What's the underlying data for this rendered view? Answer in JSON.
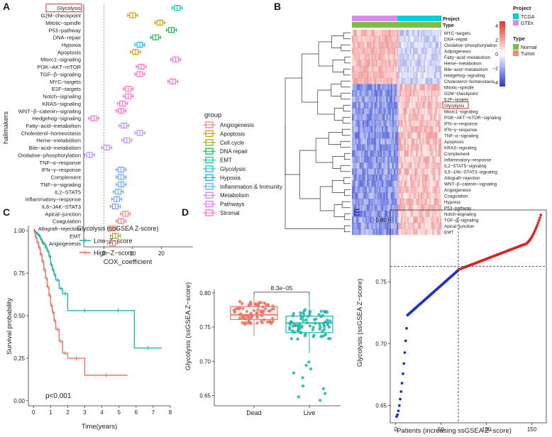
{
  "panel_letters": [
    "A",
    "B",
    "C",
    "D",
    "E"
  ],
  "chart_data": [
    {
      "panel": "A",
      "type": "scatter",
      "xlabel": "COX_coefficient",
      "ylabel": "hallmakers",
      "xlim": [
        -7,
        31
      ],
      "xticks": [
        "0",
        "10",
        "20"
      ],
      "xtick_values": [
        0,
        10,
        20
      ],
      "highlight": "Glycolysis",
      "legend_title": "group",
      "groups": [
        {
          "name": "Angiogenesis",
          "color": "#F8766D"
        },
        {
          "name": "Apoptosis",
          "color": "#D39200"
        },
        {
          "name": "Cell cycle",
          "color": "#93AA00"
        },
        {
          "name": "DNA repair",
          "color": "#00BA38"
        },
        {
          "name": "EMT",
          "color": "#00C19F"
        },
        {
          "name": "Glycolysis",
          "color": "#00B9E3"
        },
        {
          "name": "Hypoxia",
          "color": "#00A5FF"
        },
        {
          "name": "Inflammation & Immunity",
          "color": "#619CFF"
        },
        {
          "name": "Metabolism",
          "color": "#B983FF"
        },
        {
          "name": "Pathways",
          "color": "#DB72FB"
        },
        {
          "name": "Stromal",
          "color": "#FF61C3"
        }
      ],
      "rows": [
        {
          "label": "Glycolysis",
          "value": 25.5,
          "group": "EMT"
        },
        {
          "label": "G2M−checkpoint",
          "value": 10,
          "group": "Apoptosis"
        },
        {
          "label": "Mitotic−spindle",
          "value": 19.5,
          "group": "Apoptosis"
        },
        {
          "label": "P53−pathway",
          "value": 23.5,
          "group": "DNA repair"
        },
        {
          "label": "DNA−repair",
          "value": 18,
          "group": "DNA repair"
        },
        {
          "label": "Hypoxia",
          "value": 12.5,
          "group": "Glycolysis"
        },
        {
          "label": "Apoptosis",
          "value": 11,
          "group": "Apoptosis"
        },
        {
          "label": "Mtorc1−signaling",
          "value": 25,
          "group": "Stromal"
        },
        {
          "label": "PI3K−AKT−mTOR",
          "value": 13,
          "group": "Stromal"
        },
        {
          "label": "TGF−β−signaling",
          "value": 12.5,
          "group": "Stromal"
        },
        {
          "label": "MYC−targets",
          "value": 24,
          "group": "Stromal"
        },
        {
          "label": "E2F−targets",
          "value": 8.5,
          "group": "Stromal"
        },
        {
          "label": "Notch−signaling",
          "value": 8.5,
          "group": "Stromal"
        },
        {
          "label": "KRAS−signaling",
          "value": 6.5,
          "group": "Stromal"
        },
        {
          "label": "WNT−β−catenin−signaling",
          "value": 6,
          "group": "Stromal"
        },
        {
          "label": "Hedgehog−signaling",
          "value": -3.5,
          "group": "Stromal"
        },
        {
          "label": "Fatty−acid−metabolism",
          "value": 7,
          "group": "Metabolism"
        },
        {
          "label": "Cholesterol−homeostasis",
          "value": 12.5,
          "group": "Metabolism"
        },
        {
          "label": "Heme−metabolism",
          "value": 8,
          "group": "Metabolism"
        },
        {
          "label": "Bile−acid−metabolism",
          "value": 1,
          "group": "Metabolism"
        },
        {
          "label": "Oxidative−phosphorylation",
          "value": -5,
          "group": "Metabolism"
        },
        {
          "label": "TNF−α−response",
          "value": null,
          "group": "Inflammation & Immunity"
        },
        {
          "label": "IFN−γ−response",
          "value": 6,
          "group": "Inflammation & Immunity"
        },
        {
          "label": "Complement",
          "value": 6,
          "group": "Inflammation & Immunity"
        },
        {
          "label": "TNF−α−signaling",
          "value": 6,
          "group": "Inflammation & Immunity"
        },
        {
          "label": "IL2−STAT5",
          "value": 5,
          "group": "Inflammation & Immunity"
        },
        {
          "label": "Inflammatory−response",
          "value": 4.5,
          "group": "Inflammation & Immunity"
        },
        {
          "label": "IL6−JAK−STAT3",
          "value": 4,
          "group": "Inflammation & Immunity"
        },
        {
          "label": "Apical−junction",
          "value": 7.5,
          "group": "Angiogenesis"
        },
        {
          "label": "Coagulation",
          "value": 6,
          "group": "Angiogenesis"
        },
        {
          "label": "Allograft−rejection",
          "value": 3,
          "group": "Angiogenesis"
        },
        {
          "label": "EMT",
          "value": 4,
          "group": "Cell cycle"
        },
        {
          "label": "Angiogenesis",
          "value": 3,
          "group": "Angiogenesis"
        }
      ]
    },
    {
      "panel": "B",
      "type": "heatmap",
      "annotation_labels": [
        "Project",
        "Type"
      ],
      "legend_project": {
        "title": "Project",
        "items": [
          {
            "name": "TCGA",
            "color": "#00CED9"
          },
          {
            "name": "GTEx",
            "color": "#D98BE8"
          }
        ]
      },
      "legend_type": {
        "title": "Type",
        "items": [
          {
            "name": "Normal",
            "color": "#7FBF3F"
          },
          {
            "name": "Tumor",
            "color": "#F08A7A"
          }
        ]
      },
      "scale_ticks": [
        "4",
        "2",
        "0",
        "−2",
        "−4"
      ],
      "scale_values": [
        4,
        2,
        0,
        -2,
        -4
      ],
      "highlight": "Glycolysis",
      "row_labels": [
        "MYC−targets",
        "DNA−repair",
        "Oxidative−phosphorylation",
        "Adipogenesis",
        "Fatty−acid−metabolism",
        "Heme−metabolism",
        "Bile−acid−metabolism",
        "Hedgehog−signaling",
        "Cholesterol−homeostasis",
        "Mitotic−spindle",
        "G2M−checkpoint",
        "E2F−targets",
        "Glycolysis",
        "Mtorc1−signaling",
        "PI3K−AKT−mTOR−signaling",
        "IFN−α−response",
        "IFN−γ−response",
        "TNF−α−signaling",
        "Apoptosis",
        "KRAS−signaling",
        "Complement",
        "Inflammatory−response",
        "IL2−STAT5−signaling",
        "IL6−JAK−STAT3−signaling",
        "Allograft−rejection",
        "WNT−β−catenin−signaling",
        "Angiogenesis",
        "Coagulation",
        "Hypoxia",
        "P53−pathway",
        "Notch−signaling",
        "TGF−β−signaling",
        "Apical−junction",
        "EMT"
      ]
    },
    {
      "panel": "C",
      "type": "line",
      "legend_title": "Glycolysis (ssGSEA Z-score)",
      "xlabel": "Time(years)",
      "ylabel": "Survival probability",
      "xlim": [
        -0.3,
        8
      ],
      "ylim": [
        -0.03,
        1.03
      ],
      "xticks": [
        "0",
        "1",
        "2",
        "3",
        "4",
        "5",
        "6",
        "7",
        "8"
      ],
      "xtick_values": [
        0,
        1,
        2,
        3,
        4,
        5,
        6,
        7,
        8
      ],
      "yticks": [
        "0.00",
        "0.25",
        "0.50",
        "0.75",
        "1.00"
      ],
      "ytick_values": [
        0,
        0.25,
        0.5,
        0.75,
        1
      ],
      "pvalue": "p<0.001",
      "series": [
        {
          "name": "Low−Z−score",
          "color": "#1FB5AC",
          "x": [
            0,
            0.1,
            0.2,
            0.3,
            0.4,
            0.5,
            0.6,
            0.7,
            0.8,
            0.9,
            1.0,
            1.1,
            1.2,
            1.3,
            1.5,
            1.7,
            2.0,
            4.0,
            5.9,
            7.5
          ],
          "y": [
            1.0,
            0.99,
            0.98,
            0.97,
            0.95,
            0.93,
            0.92,
            0.9,
            0.88,
            0.85,
            0.8,
            0.77,
            0.74,
            0.71,
            0.66,
            0.63,
            0.53,
            0.53,
            0.31,
            0.31
          ]
        },
        {
          "name": "High−Z−score",
          "color": "#F07062",
          "x": [
            0,
            0.1,
            0.2,
            0.3,
            0.4,
            0.5,
            0.6,
            0.7,
            0.8,
            0.9,
            1.0,
            1.1,
            1.2,
            1.3,
            1.5,
            1.7,
            2.0,
            3.0,
            5.5
          ],
          "y": [
            1.0,
            0.96,
            0.93,
            0.9,
            0.86,
            0.82,
            0.77,
            0.72,
            0.67,
            0.62,
            0.56,
            0.52,
            0.47,
            0.42,
            0.35,
            0.28,
            0.25,
            0.15,
            0.15
          ]
        }
      ]
    },
    {
      "panel": "D",
      "type": "scatter",
      "subtype": "boxplot",
      "ylabel": "Glycolysis (ssGSEA Z−score)",
      "ylim": [
        0.635,
        0.805
      ],
      "yticks": [
        "0.65",
        "0.70",
        "0.75",
        "0.80"
      ],
      "ytick_values": [
        0.65,
        0.7,
        0.75,
        0.8
      ],
      "pvalue": "8.3e−05",
      "groups": [
        {
          "name": "Dead",
          "color": "#F07062",
          "q1": 0.761,
          "median": 0.768,
          "q3": 0.78,
          "low": 0.737,
          "high": 0.797
        },
        {
          "name": "Live",
          "color": "#1FB5AC",
          "q1": 0.742,
          "median": 0.756,
          "q3": 0.766,
          "low": 0.712,
          "high": 0.8
        }
      ]
    },
    {
      "panel": "E",
      "type": "scatter",
      "xlabel": "Patients (increasing ssGSEA Z−score)",
      "ylabel": "Glycolysis (ssGSEA Z−score)",
      "xlim": [
        -6,
        166
      ],
      "ylim": [
        0.636,
        0.808
      ],
      "xticks": [
        "0",
        "50",
        "100",
        "150"
      ],
      "xtick_values": [
        0,
        50,
        100,
        150
      ],
      "yticks": [
        "0.65",
        "0.70",
        "0.75",
        "0.80"
      ],
      "ytick_values": [
        0.65,
        0.7,
        0.75,
        0.8
      ],
      "cutoff_x": 69,
      "cutoff_y": 0.7625,
      "n_points": 160,
      "series": [
        {
          "name": "low",
          "color": "#1D2FD6"
        },
        {
          "name": "high",
          "color": "#E0231C"
        }
      ]
    }
  ]
}
